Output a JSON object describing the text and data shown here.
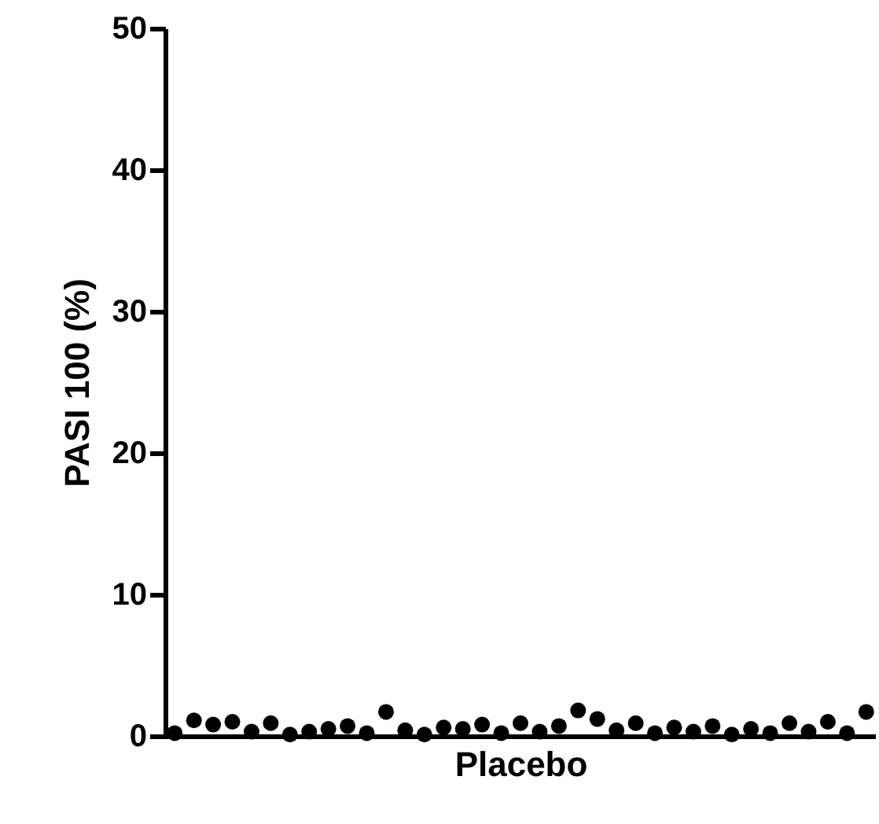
{
  "chart_data": {
    "type": "scatter",
    "ylabel": "PASI 100 (%)",
    "xlabel": "Placebo",
    "categories": [
      null,
      null,
      null,
      null,
      null,
      null,
      null,
      null,
      null,
      null,
      null,
      null,
      null,
      null,
      null,
      null,
      null,
      null,
      null,
      null,
      null,
      null,
      null,
      null,
      null,
      null,
      null,
      null,
      null,
      null,
      null,
      null,
      null,
      null,
      null,
      null,
      null
    ],
    "series": [
      {
        "color": "#000000",
        "values": [
          0.2,
          1.1,
          0.8,
          1.0,
          0.3,
          0.9,
          0.1,
          0.3,
          0.5,
          0.7,
          0.2,
          1.7,
          0.4,
          0.1,
          0.6,
          0.5,
          0.8,
          0.2,
          0.9,
          0.3,
          0.7,
          1.8,
          1.2,
          0.4,
          0.9,
          0.2,
          0.6,
          0.3,
          0.7,
          0.1,
          0.5,
          0.2,
          0.9,
          0.3,
          1.0,
          0.2,
          1.7
        ]
      }
    ],
    "ylim": [
      0,
      50
    ],
    "yticks": [
      0,
      10,
      20,
      30,
      40,
      50
    ],
    "marker": "circle",
    "tick_labels": "y"
  }
}
